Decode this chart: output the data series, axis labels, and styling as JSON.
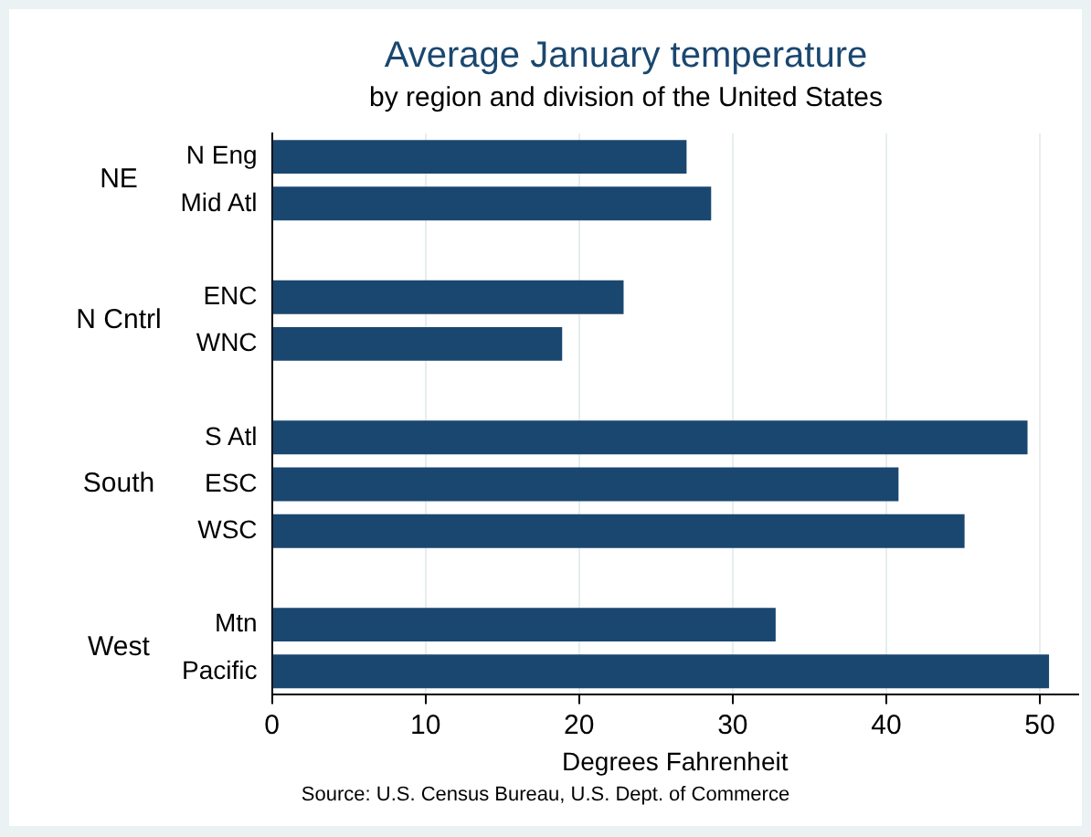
{
  "chart_data": {
    "type": "bar",
    "orientation": "horizontal",
    "title": "Average January temperature",
    "subtitle": "by region and division of the United States",
    "xlabel": "Degrees Fahrenheit",
    "categories": [
      "N Eng",
      "Mid Atl",
      null,
      "ENC",
      "WNC",
      null,
      "S Atl",
      "ESC",
      "WSC",
      null,
      "Mtn",
      "Pacific"
    ],
    "values": [
      27.0,
      28.6,
      null,
      22.9,
      18.9,
      null,
      49.2,
      40.8,
      45.1,
      null,
      32.8,
      50.6
    ],
    "color": "#1a476f",
    "xlim": [
      0,
      52.5
    ],
    "xticks": [
      0,
      10,
      20,
      30,
      40,
      50
    ],
    "grid": "x",
    "legend": false,
    "annotations": [
      "NE",
      "N Cntrl",
      "South",
      "West",
      "Source: U.S. Census Bureau, U.S. Dept. of Commerce"
    ]
  }
}
